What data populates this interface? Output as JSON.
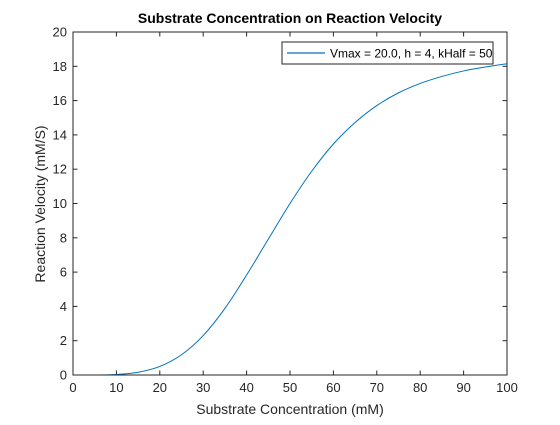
{
  "chart_data": {
    "type": "line",
    "title": "Substrate Concentration on Reaction Velocity",
    "xlabel": "Substrate Concentration (mM)",
    "ylabel": "Reaction Velocity (mM/S)",
    "xlim": [
      0,
      100
    ],
    "ylim": [
      0,
      20
    ],
    "xticks": [
      "0",
      "10",
      "20",
      "30",
      "40",
      "50",
      "60",
      "70",
      "80",
      "90",
      "100"
    ],
    "yticks": [
      "0",
      "2",
      "4",
      "6",
      "8",
      "10",
      "12",
      "14",
      "16",
      "18",
      "20"
    ],
    "grid": false,
    "legend_position": "top-right",
    "series": [
      {
        "name": "Vmax = 20.0, h = 4, kHalf = 50",
        "color": "#0072BD",
        "x": [
          0,
          5,
          10,
          15,
          20,
          25,
          30,
          35,
          40,
          45,
          50,
          55,
          60,
          65,
          70,
          75,
          80,
          85,
          90,
          95,
          100
        ],
        "y": [
          0,
          0.0002,
          0.032,
          0.16,
          0.5,
          1.18,
          2.3,
          3.88,
          5.83,
          7.92,
          10.0,
          11.88,
          13.47,
          14.72,
          15.71,
          16.45,
          17.0,
          17.41,
          17.73,
          17.96,
          18.15
        ]
      }
    ]
  }
}
